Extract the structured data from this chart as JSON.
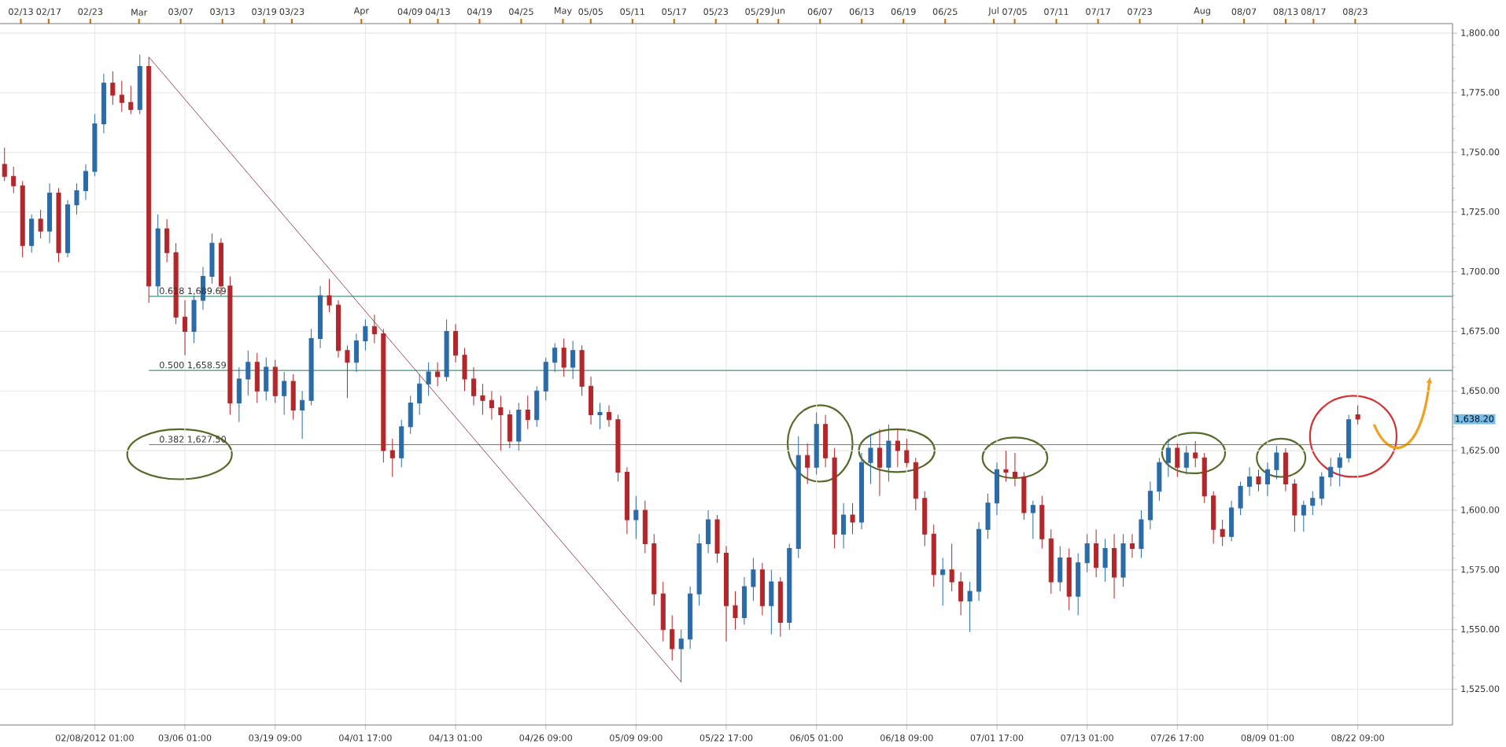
{
  "chart_data": {
    "type": "candlestick",
    "categories": [
      null,
      null,
      null,
      null,
      null,
      null,
      null,
      null,
      null,
      null,
      "02/08/2012 01:00",
      null,
      null,
      null,
      null,
      null,
      null,
      null,
      null,
      null,
      "03/06 01:00",
      null,
      null,
      null,
      null,
      null,
      null,
      null,
      null,
      null,
      "03/19 09:00",
      null,
      null,
      null,
      null,
      null,
      null,
      null,
      null,
      null,
      "04/01 17:00",
      null,
      null,
      null,
      null,
      null,
      null,
      null,
      null,
      null,
      "04/13 01:00",
      null,
      null,
      null,
      null,
      null,
      null,
      null,
      null,
      null,
      "04/26 09:00",
      null,
      null,
      null,
      null,
      null,
      null,
      null,
      null,
      null,
      "05/09 09:00",
      null,
      null,
      null,
      null,
      null,
      null,
      null,
      null,
      null,
      "05/22 17:00",
      null,
      null,
      null,
      null,
      null,
      null,
      null,
      null,
      null,
      "06/05 01:00",
      null,
      null,
      null,
      null,
      null,
      null,
      null,
      null,
      null,
      "06/18 09:00",
      null,
      null,
      null,
      null,
      null,
      null,
      null,
      null,
      null,
      "07/01 17:00",
      null,
      null,
      null,
      null,
      null,
      null,
      null,
      null,
      null,
      "07/13 01:00",
      null,
      null,
      null,
      null,
      null,
      null,
      null,
      null,
      null,
      "07/26 17:00",
      null,
      null,
      null,
      null,
      null,
      null,
      null,
      null,
      null,
      "08/09 01:00",
      null,
      null,
      null,
      null,
      null,
      null,
      null,
      null,
      null,
      "08/22 09:00",
      null,
      null,
      null,
      null,
      null,
      null,
      null,
      null,
      null,
      null
    ],
    "ohlc": [
      [
        1745,
        1752,
        1738,
        1740
      ],
      [
        1740,
        1744,
        1733,
        1736
      ],
      [
        1736,
        1738,
        1706,
        1711
      ],
      [
        1711,
        1724,
        1708,
        1722
      ],
      [
        1722,
        1726,
        1714,
        1717
      ],
      [
        1717,
        1737,
        1712,
        1733
      ],
      [
        1733,
        1735,
        1704,
        1708
      ],
      [
        1708,
        1730,
        1706,
        1728
      ],
      [
        1728,
        1737,
        1724,
        1734
      ],
      [
        1734,
        1745,
        1730,
        1742
      ],
      [
        1742,
        1766,
        1740,
        1762
      ],
      [
        1762,
        1783,
        1758,
        1779
      ],
      [
        1779,
        1784,
        1770,
        1774
      ],
      [
        1774,
        1780,
        1767,
        1771
      ],
      [
        1771,
        1778,
        1766,
        1768
      ],
      [
        1768,
        1791,
        1766,
        1786
      ],
      [
        1786,
        1790,
        1687,
        1694
      ],
      [
        1694,
        1724,
        1690,
        1718
      ],
      [
        1718,
        1722,
        1704,
        1708
      ],
      [
        1708,
        1712,
        1678,
        1681
      ],
      [
        1681,
        1688,
        1665,
        1675
      ],
      [
        1675,
        1690,
        1670,
        1688
      ],
      [
        1688,
        1702,
        1684,
        1698
      ],
      [
        1698,
        1716,
        1695,
        1712
      ],
      [
        1712,
        1714,
        1690,
        1694
      ],
      [
        1694,
        1698,
        1640,
        1645
      ],
      [
        1645,
        1660,
        1637,
        1655
      ],
      [
        1655,
        1667,
        1648,
        1662
      ],
      [
        1662,
        1666,
        1645,
        1650
      ],
      [
        1650,
        1664,
        1646,
        1660
      ],
      [
        1660,
        1663,
        1645,
        1648
      ],
      [
        1648,
        1658,
        1640,
        1654
      ],
      [
        1654,
        1657,
        1638,
        1642
      ],
      [
        1642,
        1650,
        1630,
        1646
      ],
      [
        1646,
        1676,
        1644,
        1672
      ],
      [
        1672,
        1694,
        1668,
        1690
      ],
      [
        1690,
        1697,
        1683,
        1686
      ],
      [
        1686,
        1688,
        1664,
        1667
      ],
      [
        1667,
        1669,
        1647,
        1662
      ],
      [
        1662,
        1674,
        1658,
        1671
      ],
      [
        1671,
        1680,
        1667,
        1677
      ],
      [
        1677,
        1682,
        1670,
        1674
      ],
      [
        1674,
        1676,
        1620,
        1625
      ],
      [
        1625,
        1630,
        1614,
        1622
      ],
      [
        1622,
        1638,
        1618,
        1635
      ],
      [
        1635,
        1648,
        1632,
        1645
      ],
      [
        1645,
        1657,
        1640,
        1653
      ],
      [
        1653,
        1662,
        1648,
        1658
      ],
      [
        1658,
        1662,
        1652,
        1656
      ],
      [
        1656,
        1680,
        1654,
        1675
      ],
      [
        1675,
        1678,
        1662,
        1665
      ],
      [
        1665,
        1668,
        1650,
        1655
      ],
      [
        1655,
        1660,
        1644,
        1648
      ],
      [
        1648,
        1653,
        1640,
        1646
      ],
      [
        1646,
        1650,
        1638,
        1643
      ],
      [
        1643,
        1648,
        1625,
        1640
      ],
      [
        1640,
        1642,
        1626,
        1629
      ],
      [
        1629,
        1645,
        1625,
        1642
      ],
      [
        1642,
        1648,
        1634,
        1638
      ],
      [
        1638,
        1652,
        1635,
        1650
      ],
      [
        1650,
        1664,
        1646,
        1662
      ],
      [
        1662,
        1670,
        1658,
        1668
      ],
      [
        1668,
        1672,
        1656,
        1660
      ],
      [
        1660,
        1671,
        1655,
        1667
      ],
      [
        1667,
        1669,
        1648,
        1652
      ],
      [
        1652,
        1656,
        1636,
        1640
      ],
      [
        1640,
        1645,
        1634,
        1641
      ],
      [
        1641,
        1644,
        1635,
        1638
      ],
      [
        1638,
        1640,
        1612,
        1616
      ],
      [
        1616,
        1618,
        1590,
        1596
      ],
      [
        1596,
        1606,
        1588,
        1600
      ],
      [
        1600,
        1604,
        1582,
        1586
      ],
      [
        1586,
        1590,
        1560,
        1565
      ],
      [
        1565,
        1570,
        1545,
        1550
      ],
      [
        1550,
        1556,
        1537,
        1542
      ],
      [
        1542,
        1550,
        1528,
        1546
      ],
      [
        1546,
        1568,
        1542,
        1565
      ],
      [
        1565,
        1590,
        1560,
        1586
      ],
      [
        1586,
        1600,
        1582,
        1596
      ],
      [
        1596,
        1598,
        1578,
        1582
      ],
      [
        1582,
        1585,
        1545,
        1560
      ],
      [
        1560,
        1566,
        1550,
        1555
      ],
      [
        1555,
        1572,
        1552,
        1568
      ],
      [
        1568,
        1580,
        1562,
        1575
      ],
      [
        1575,
        1578,
        1556,
        1560
      ],
      [
        1560,
        1575,
        1548,
        1570
      ],
      [
        1570,
        1572,
        1547,
        1553
      ],
      [
        1553,
        1586,
        1550,
        1584
      ],
      [
        1584,
        1631,
        1580,
        1623
      ],
      [
        1623,
        1628,
        1611,
        1618
      ],
      [
        1618,
        1641,
        1615,
        1636
      ],
      [
        1636,
        1640,
        1618,
        1622
      ],
      [
        1622,
        1626,
        1584,
        1590
      ],
      [
        1590,
        1603,
        1584,
        1598
      ],
      [
        1598,
        1603,
        1590,
        1595
      ],
      [
        1595,
        1624,
        1592,
        1620
      ],
      [
        1620,
        1632,
        1611,
        1626
      ],
      [
        1626,
        1634,
        1606,
        1618
      ],
      [
        1618,
        1636,
        1612,
        1629
      ],
      [
        1629,
        1634,
        1618,
        1625
      ],
      [
        1625,
        1630,
        1618,
        1620
      ],
      [
        1620,
        1622,
        1600,
        1605
      ],
      [
        1605,
        1608,
        1585,
        1590
      ],
      [
        1590,
        1594,
        1568,
        1573
      ],
      [
        1573,
        1580,
        1560,
        1575
      ],
      [
        1575,
        1586,
        1566,
        1570
      ],
      [
        1570,
        1574,
        1556,
        1562
      ],
      [
        1562,
        1570,
        1549,
        1566
      ],
      [
        1566,
        1595,
        1562,
        1592
      ],
      [
        1592,
        1607,
        1588,
        1603
      ],
      [
        1603,
        1620,
        1598,
        1617
      ],
      [
        1617,
        1625,
        1612,
        1616
      ],
      [
        1616,
        1624,
        1610,
        1614
      ],
      [
        1614,
        1616,
        1596,
        1599
      ],
      [
        1599,
        1604,
        1588,
        1602
      ],
      [
        1602,
        1606,
        1584,
        1588
      ],
      [
        1588,
        1592,
        1565,
        1570
      ],
      [
        1570,
        1585,
        1566,
        1580
      ],
      [
        1580,
        1584,
        1558,
        1564
      ],
      [
        1564,
        1582,
        1556,
        1578
      ],
      [
        1578,
        1590,
        1574,
        1586
      ],
      [
        1586,
        1592,
        1572,
        1576
      ],
      [
        1576,
        1588,
        1570,
        1584
      ],
      [
        1584,
        1590,
        1563,
        1572
      ],
      [
        1572,
        1590,
        1568,
        1586
      ],
      [
        1586,
        1590,
        1580,
        1584
      ],
      [
        1584,
        1600,
        1580,
        1596
      ],
      [
        1596,
        1612,
        1592,
        1608
      ],
      [
        1608,
        1622,
        1604,
        1620
      ],
      [
        1620,
        1630,
        1614,
        1626
      ],
      [
        1626,
        1628,
        1614,
        1618
      ],
      [
        1618,
        1627,
        1615,
        1624
      ],
      [
        1624,
        1629,
        1618,
        1622
      ],
      [
        1622,
        1624,
        1603,
        1606
      ],
      [
        1606,
        1608,
        1586,
        1592
      ],
      [
        1592,
        1596,
        1585,
        1589
      ],
      [
        1589,
        1604,
        1587,
        1601
      ],
      [
        1601,
        1612,
        1598,
        1610
      ],
      [
        1610,
        1618,
        1606,
        1614
      ],
      [
        1614,
        1617,
        1608,
        1611
      ],
      [
        1611,
        1620,
        1606,
        1617
      ],
      [
        1617,
        1627,
        1613,
        1624
      ],
      [
        1624,
        1626,
        1608,
        1611
      ],
      [
        1611,
        1613,
        1591,
        1598
      ],
      [
        1598,
        1604,
        1591,
        1602
      ],
      [
        1602,
        1608,
        1598,
        1605
      ],
      [
        1605,
        1616,
        1602,
        1614
      ],
      [
        1614,
        1622,
        1610,
        1618
      ],
      [
        1618,
        1624,
        1610,
        1622
      ],
      [
        1622,
        1640,
        1620,
        1638
      ],
      [
        1640,
        1644,
        1636,
        1638.2
      ],
      null,
      null,
      null,
      null,
      null,
      null,
      null,
      null,
      null,
      null
    ],
    "ylim": [
      1510,
      1804
    ],
    "yticks": [
      {
        "value": 1525,
        "label": "1,525.00"
      },
      {
        "value": 1550,
        "label": "1,550.00"
      },
      {
        "value": 1575,
        "label": "1,575.00"
      },
      {
        "value": 1600,
        "label": "1,600.00"
      },
      {
        "value": 1625,
        "label": "1,625.00"
      },
      {
        "value": 1650,
        "label": "1,650.00"
      },
      {
        "value": 1675,
        "label": "1,675.00"
      },
      {
        "value": 1700,
        "label": "1,700.00"
      },
      {
        "value": 1725,
        "label": "1,725.00"
      },
      {
        "value": 1750,
        "label": "1,750.00"
      },
      {
        "value": 1775,
        "label": "1,775.00"
      },
      {
        "value": 1800,
        "label": "1,800.00"
      }
    ],
    "x2lim": [
      "2012-02-10",
      "2012-09-06"
    ],
    "x2ticks": [
      {
        "value": "2012-02-13",
        "label": "02/13"
      },
      {
        "value": "2012-02-17",
        "label": "02/17"
      },
      {
        "value": "2012-02-23",
        "label": "02/23"
      },
      {
        "value": "2012-03-01",
        "label": "Mar"
      },
      {
        "value": "2012-03-07",
        "label": "03/07"
      },
      {
        "value": "2012-03-13",
        "label": "03/13"
      },
      {
        "value": "2012-03-19",
        "label": "03/19"
      },
      {
        "value": "2012-03-23",
        "label": "03/23"
      },
      {
        "value": "2012-04-02",
        "label": "Apr"
      },
      {
        "value": "2012-04-09",
        "label": "04/09"
      },
      {
        "value": "2012-04-13",
        "label": "04/13"
      },
      {
        "value": "2012-04-19",
        "label": "04/19"
      },
      {
        "value": "2012-04-25",
        "label": "04/25"
      },
      {
        "value": "2012-05-01",
        "label": "May"
      },
      {
        "value": "2012-05-05",
        "label": "05/05"
      },
      {
        "value": "2012-05-11",
        "label": "05/11"
      },
      {
        "value": "2012-05-17",
        "label": "05/17"
      },
      {
        "value": "2012-05-23",
        "label": "05/23"
      },
      {
        "value": "2012-05-29",
        "label": "05/29"
      },
      {
        "value": "2012-06-01",
        "label": "Jun"
      },
      {
        "value": "2012-06-07",
        "label": "06/07"
      },
      {
        "value": "2012-06-13",
        "label": "06/13"
      },
      {
        "value": "2012-06-19",
        "label": "06/19"
      },
      {
        "value": "2012-06-25",
        "label": "06/25"
      },
      {
        "value": "2012-07-02",
        "label": "Jul"
      },
      {
        "value": "2012-07-05",
        "label": "07/05"
      },
      {
        "value": "2012-07-11",
        "label": "07/11"
      },
      {
        "value": "2012-07-17",
        "label": "07/17"
      },
      {
        "value": "2012-07-23",
        "label": "07/23"
      },
      {
        "value": "2012-08-01",
        "label": "Aug"
      },
      {
        "value": "2012-08-07",
        "label": "08/07"
      },
      {
        "value": "2012-08-13",
        "label": "08/13"
      },
      {
        "value": "2012-08-17",
        "label": "08/17"
      },
      {
        "value": "2012-08-23",
        "label": "08/23"
      }
    ],
    "grid": true,
    "series": [
      {
        "type": "line",
        "color": "#8b3a4a",
        "values": [
          null,
          null,
          null,
          null,
          null,
          null,
          null,
          null,
          null,
          null,
          null,
          null,
          null,
          null,
          null,
          null,
          1790,
          null,
          null,
          null,
          null,
          null,
          null,
          null,
          null,
          null,
          null,
          null,
          null,
          null,
          null,
          null,
          null,
          null,
          null,
          null,
          null,
          null,
          null,
          null,
          null,
          null,
          null,
          null,
          null,
          null,
          null,
          null,
          null,
          null,
          null,
          null,
          null,
          null,
          null,
          null,
          null,
          null,
          null,
          null,
          null,
          null,
          null,
          null,
          null,
          null,
          null,
          null,
          null,
          null,
          null,
          null,
          null,
          null,
          null,
          1528,
          null,
          null,
          null,
          null,
          null,
          null,
          null,
          null,
          null,
          null,
          null,
          null,
          null,
          null,
          null,
          null,
          null,
          null,
          null,
          null,
          null,
          null,
          null,
          null,
          null,
          null,
          null,
          null,
          null,
          null,
          null,
          null,
          null,
          null,
          null,
          null,
          null,
          null,
          null,
          null,
          null,
          null,
          null,
          null,
          null,
          null,
          null,
          null,
          null,
          null,
          null,
          null,
          null,
          null,
          null,
          null,
          null,
          null,
          null,
          null,
          null,
          null,
          null,
          null,
          null,
          null,
          null,
          null,
          null,
          null,
          null,
          null,
          null,
          null,
          null,
          null,
          null,
          null,
          null,
          null,
          null,
          null,
          null,
          null,
          null
        ]
      }
    ],
    "ref_lines": [
      {
        "axis": "y",
        "value": 1689.69,
        "label": "0.618 1,689.69",
        "color": "#3d9482"
      },
      {
        "axis": "y",
        "value": 1658.59,
        "label": "0.500 1,658.59",
        "color": "#3d9482"
      },
      {
        "axis": "y",
        "value": 1627.5,
        "label": "0.382 1,627.50",
        "color": "#3d9482"
      }
    ],
    "annotations": [
      "1,638.20"
    ]
  }
}
